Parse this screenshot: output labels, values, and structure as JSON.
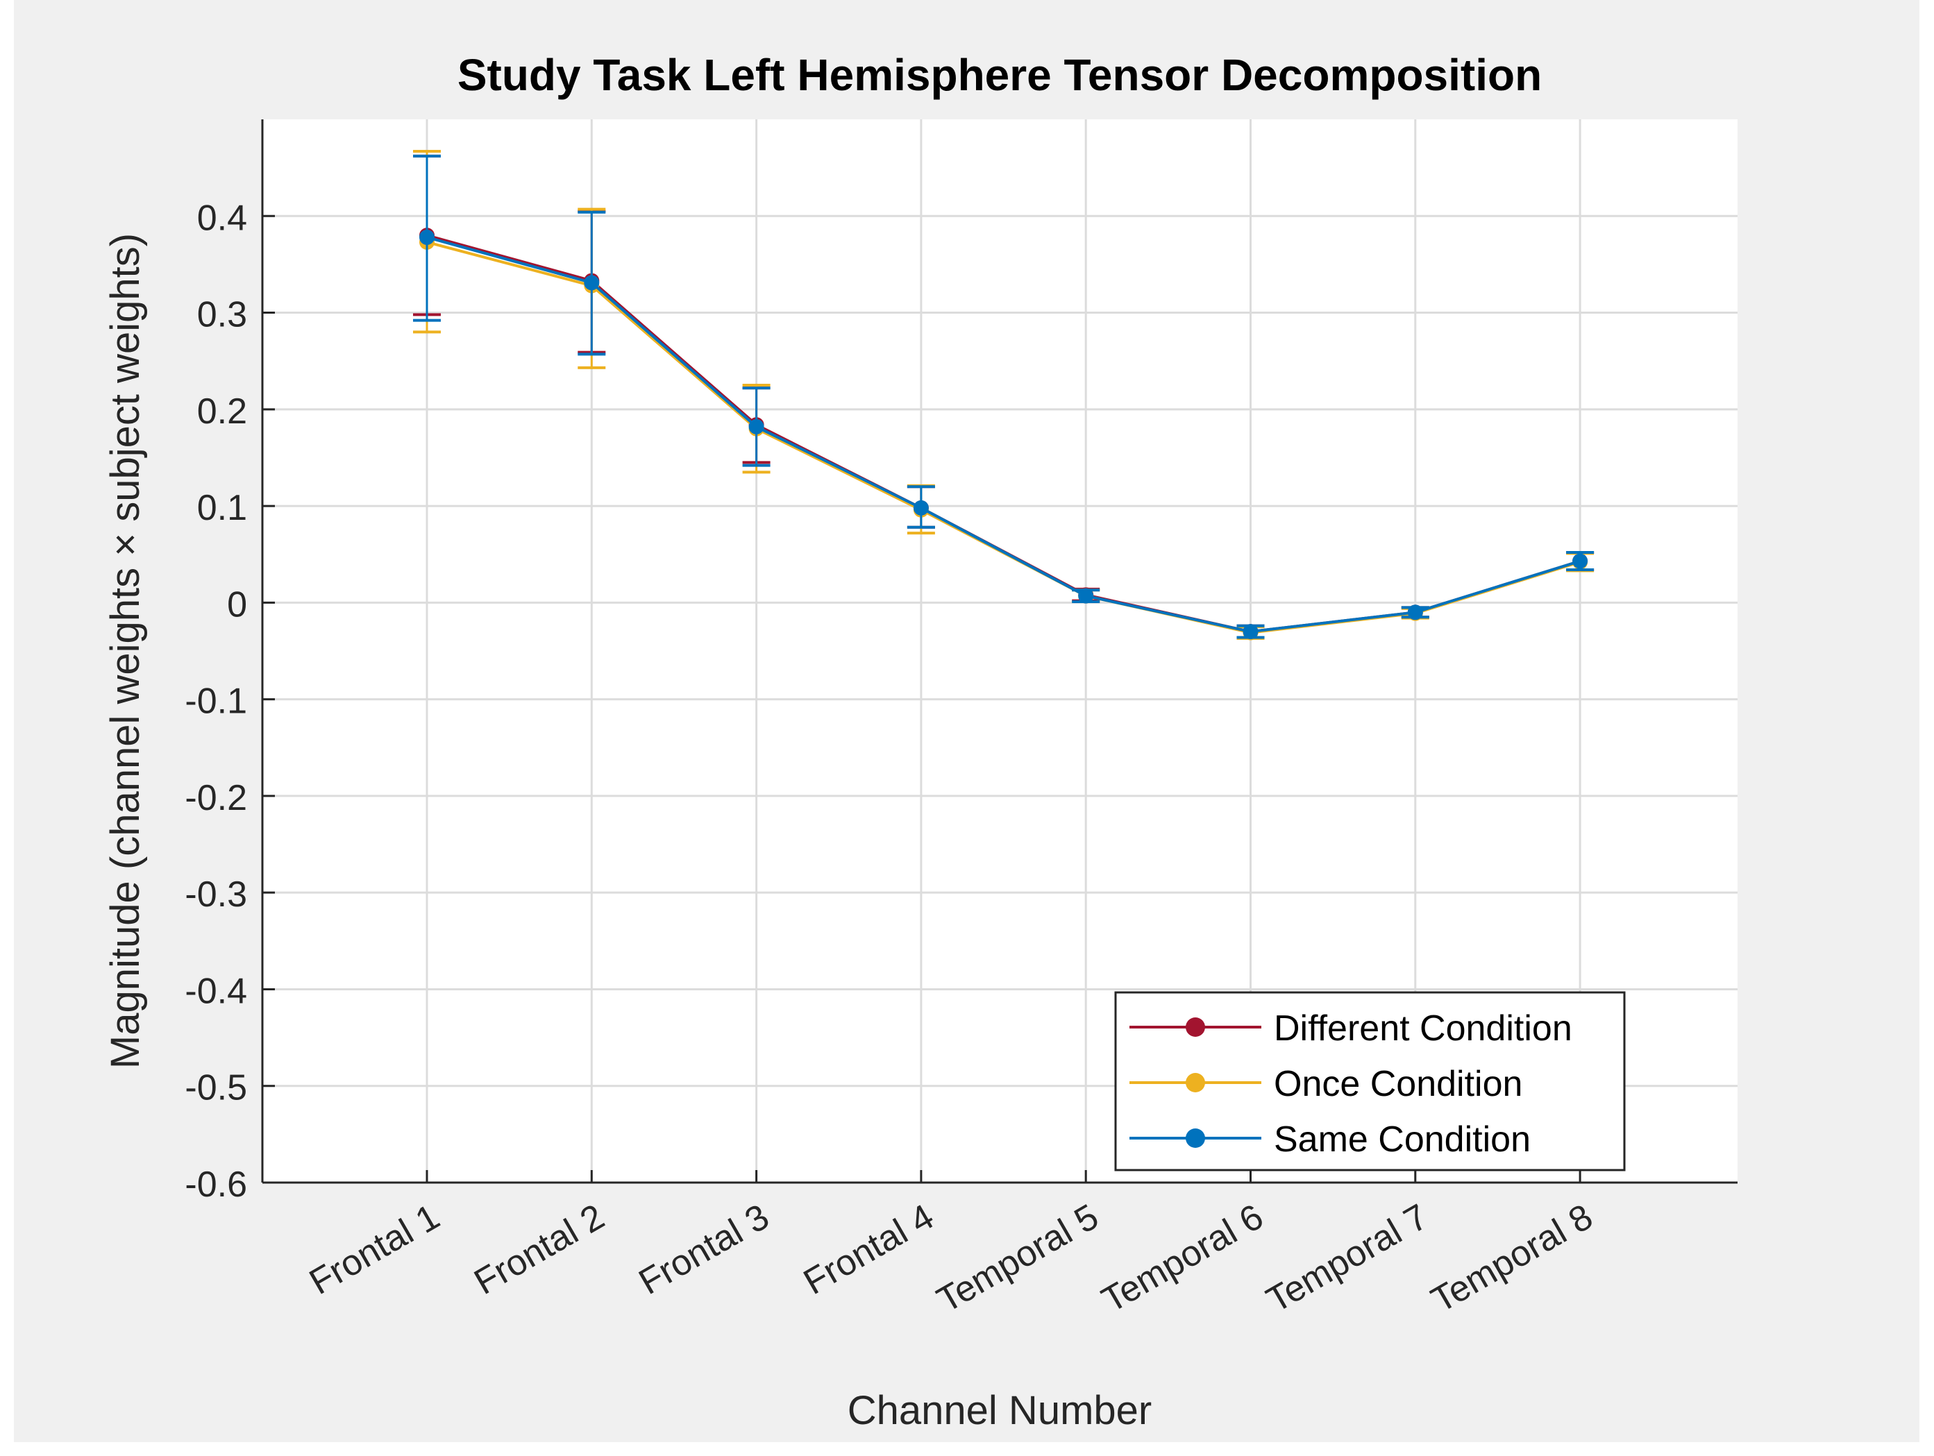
{
  "chart_data": {
    "type": "line",
    "title": "Study Task Left Hemisphere Tensor Decomposition",
    "xlabel": "Channel Number",
    "ylabel": "Magnitude (channel weights × subject weights)",
    "categories": [
      "Frontal 1",
      "Frontal 2",
      "Frontal 3",
      "Frontal 4",
      "Temporal 5",
      "Temporal 6",
      "Temporal 7",
      "Temporal 8"
    ],
    "ylim": [
      -0.6,
      0.5
    ],
    "yticks": [
      "-0.6",
      "-0.5",
      "-0.4",
      "-0.3",
      "-0.2",
      "-0.1",
      "0",
      "0.1",
      "0.2",
      "0.3",
      "0.4"
    ],
    "grid": true,
    "legend_position": "bottom-right",
    "series": [
      {
        "name": "Different Condition",
        "color": "#A2142F",
        "values": [
          0.38,
          0.333,
          0.184,
          0.098,
          0.008,
          -0.03,
          -0.01,
          0.043
        ],
        "error_low": [
          0.298,
          0.259,
          0.145,
          0.078,
          0.002,
          -0.036,
          -0.015,
          0.034
        ],
        "error_high": [
          0.462,
          0.405,
          0.222,
          0.12,
          0.014,
          -0.024,
          -0.005,
          0.052
        ]
      },
      {
        "name": "Once Condition",
        "color": "#EDB120",
        "values": [
          0.373,
          0.328,
          0.18,
          0.096,
          0.007,
          -0.031,
          -0.011,
          0.042
        ],
        "error_low": [
          0.28,
          0.243,
          0.135,
          0.072,
          0.001,
          -0.037,
          -0.016,
          0.033
        ],
        "error_high": [
          0.467,
          0.407,
          0.225,
          0.121,
          0.013,
          -0.025,
          -0.006,
          0.051
        ]
      },
      {
        "name": "Same Condition",
        "color": "#0072BD",
        "values": [
          0.378,
          0.331,
          0.182,
          0.098,
          0.007,
          -0.03,
          -0.01,
          0.043
        ],
        "error_low": [
          0.292,
          0.257,
          0.142,
          0.078,
          0.001,
          -0.036,
          -0.015,
          0.034
        ],
        "error_high": [
          0.462,
          0.404,
          0.222,
          0.12,
          0.013,
          -0.024,
          -0.005,
          0.052
        ]
      }
    ]
  }
}
